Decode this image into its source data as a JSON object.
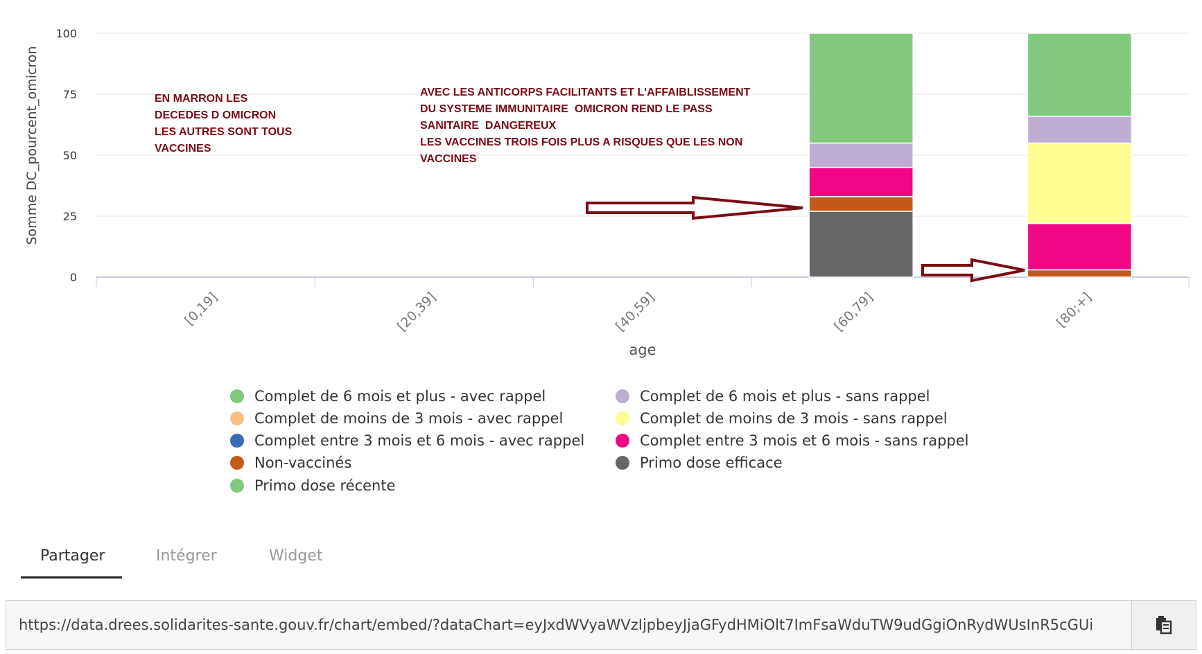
{
  "annotations": {
    "left": "EN MARRON LES\nDECEDES D OMICRON\nLES AUTRES SONT TOUS\nVACCINES",
    "right": "AVEC LES ANTICORPS FACILITANTS ET L'AFFAIBLISSEMENT\nDU SYSTEME IMMUNITAIRE  OMICRON REND LE PASS\nSANITAIRE  DANGEREUX\nLES VACCINES TROIS FOIS PLUS A RISQUES QUE LES NON\nVACCINES"
  },
  "chart_data": {
    "type": "bar",
    "stacked": true,
    "xlabel": "age",
    "ylabel": "Somme DC_pourcent_omicron",
    "ylim": [
      0,
      100
    ],
    "yticks": [
      0,
      25,
      50,
      75,
      100
    ],
    "grid": true,
    "categories": [
      "[0,19]",
      "[20,39]",
      "[40,59]",
      "[60,79]",
      "[80;+]"
    ],
    "series": [
      {
        "name": "Primo dose efficace",
        "color": "#666666",
        "values": [
          0,
          0,
          0,
          27,
          0
        ]
      },
      {
        "name": "Non-vaccinés",
        "color": "#c35a1b",
        "values": [
          0,
          0,
          0,
          6,
          3
        ]
      },
      {
        "name": "Complet entre 3 mois et 6 mois - sans rappel",
        "color": "#ef0785",
        "values": [
          0,
          0,
          0,
          12,
          19
        ]
      },
      {
        "name": "Complet de moins de 3 mois - sans rappel",
        "color": "#fdfd93",
        "values": [
          0,
          0,
          0,
          0,
          33
        ]
      },
      {
        "name": "Complet de 6 mois et plus - sans rappel",
        "color": "#beaed3",
        "values": [
          0,
          0,
          0,
          10,
          11
        ]
      },
      {
        "name": "Complet de 6 mois et plus - avec rappel",
        "color": "#80c97e",
        "values": [
          0,
          0,
          0,
          45,
          34
        ]
      },
      {
        "name": "Complet de moins de 3 mois - avec rappel",
        "color": "#fbbf85",
        "values": [
          0,
          0,
          0,
          0,
          0
        ]
      },
      {
        "name": "Complet entre 3 mois et 6 mois - avec rappel",
        "color": "#386cb0",
        "values": [
          0,
          0,
          0,
          0,
          0
        ]
      },
      {
        "name": "Primo dose récente",
        "color": "#80c97e",
        "values": [
          0,
          0,
          0,
          0,
          0
        ]
      }
    ]
  },
  "legend": [
    {
      "label": "Complet de 6 mois et plus - avec rappel",
      "color": "#80c97e"
    },
    {
      "label": "Complet de 6 mois et plus - sans rappel",
      "color": "#beaed3"
    },
    {
      "label": "Complet de moins de 3 mois - avec rappel",
      "color": "#fbbf85"
    },
    {
      "label": "Complet de moins de 3 mois - sans rappel",
      "color": "#fdfd93"
    },
    {
      "label": "Complet entre 3 mois et 6 mois - avec rappel",
      "color": "#386cb0"
    },
    {
      "label": "Complet entre 3 mois et 6 mois - sans rappel",
      "color": "#ef0785"
    },
    {
      "label": "Non-vaccinés",
      "color": "#c35a1b"
    },
    {
      "label": "Primo dose efficace",
      "color": "#666666"
    },
    {
      "label": "Primo dose récente",
      "color": "#80c97e"
    }
  ],
  "tabs": [
    {
      "label": "Partager",
      "active": true
    },
    {
      "label": "Intégrer",
      "active": false
    },
    {
      "label": "Widget",
      "active": false
    }
  ],
  "share": {
    "url": "https://data.drees.solidarites-sante.gouv.fr/chart/embed/?dataChart=eyJxdWVyaWVzIjpbeyJjaGFydHMiOlt7ImFsaWduTW9udGgiOnRydWUsInR5cGUi",
    "copy_icon": "clipboard-icon"
  },
  "colors": {
    "annotation": "#7b0b14",
    "arrow": "#7b0b14"
  }
}
